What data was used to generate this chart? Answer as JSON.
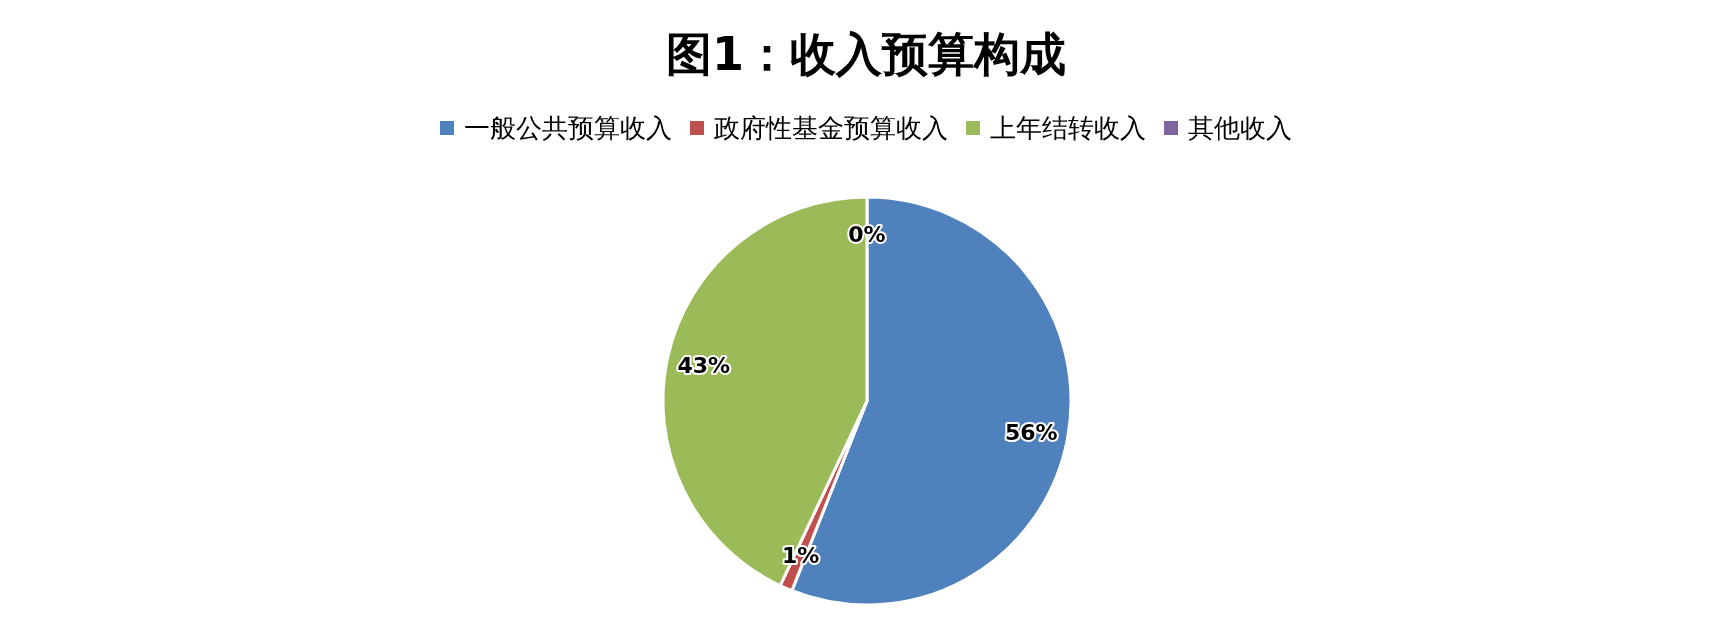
{
  "chart_data": {
    "type": "pie",
    "title": "图1：收入预算构成",
    "categories": [
      "一般公共预算收入",
      "政府性基金预算收入",
      "上年结转收入",
      "其他收入"
    ],
    "values": [
      56,
      1,
      43,
      0
    ],
    "colors": [
      "#4f81bd",
      "#c0504d",
      "#9bbb59",
      "#8064a2"
    ],
    "value_labels": [
      "56%",
      "1%",
      "43%",
      "0%"
    ],
    "legend": "top"
  }
}
